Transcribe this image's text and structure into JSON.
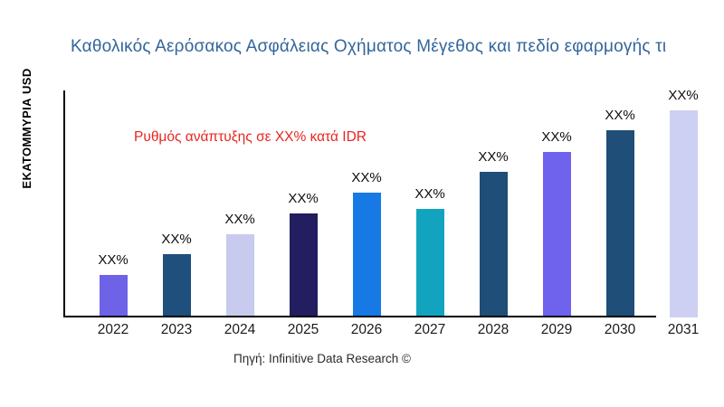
{
  "header": {
    "title": "Καθολικός Αερόσακος Ασφάλειας Οχήματος Μέγεθος και πεδίο εφαρμογής τι",
    "title_color": "#34659B"
  },
  "annotation": {
    "text": "Ρυθμός ανάπτυξης σε XX% κατά IDR",
    "color": "#E8251F"
  },
  "footer": {
    "source": "Πηγή: Infinitive Data Research ©"
  },
  "chart_data": {
    "type": "bar",
    "title": "Καθολικός Αερόσακος Ασφάλειας Οχήματος Μέγεθος και πεδίο εφαρμογής τι",
    "xlabel": "",
    "ylabel": "ΕΚΑΤΟΜΜΥΡΙΑ USD",
    "categories": [
      "2022",
      "2023",
      "2024",
      "2025",
      "2026",
      "2027",
      "2028",
      "2029",
      "2030",
      "2031"
    ],
    "values_relative_index": [
      20.5,
      30.6,
      40.2,
      50.2,
      60.3,
      52.4,
      70.3,
      79.9,
      90.4,
      100
    ],
    "bar_value_labels": [
      "XX%",
      "XX%",
      "XX%",
      "XX%",
      "XX%",
      "XX%",
      "XX%",
      "XX%",
      "XX%",
      "XX%"
    ],
    "bar_colors": [
      "#6E62E6",
      "#1E4F7D",
      "#C8CAEE",
      "#221E60",
      "#1779E3",
      "#12A4BF",
      "#1F4E79",
      "#6F63EE",
      "#1F4E79",
      "#CDD0F2"
    ],
    "axis_color": "#000000",
    "gridlines": false,
    "legend": false
  }
}
